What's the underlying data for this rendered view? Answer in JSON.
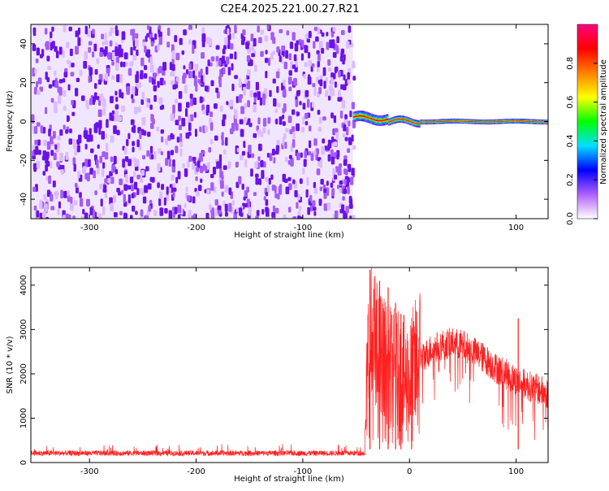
{
  "title": "C2E4.2025.221.00.27.R21",
  "chart_data": [
    {
      "type": "heatmap",
      "xlabel": "Height of straight line (km)",
      "ylabel": "Frequency (Hz)",
      "xlim": [
        -355,
        130
      ],
      "ylim": [
        -50,
        50
      ],
      "xticks": [
        -300,
        -200,
        -100,
        0,
        100
      ],
      "yticks": [
        -40,
        -20,
        0,
        20,
        40
      ],
      "noise_region_x": [
        -355,
        -53
      ],
      "signal_center_hz": 0,
      "signal_spread_hz": 4,
      "colorbar": {
        "label": "Normalized spectral amplitude",
        "range": [
          0,
          1
        ],
        "ticks": [
          0.0,
          0.2,
          0.4,
          0.6,
          0.8
        ],
        "colors": [
          "#ffffff",
          "#b060ff",
          "#0000ff",
          "#00e0ff",
          "#00ff00",
          "#ffff00",
          "#ff8000",
          "#ff0000",
          "#ff0080"
        ]
      }
    },
    {
      "type": "line",
      "xlabel": "Height of straight line (km)",
      "ylabel": "SNR (10 * v/v)",
      "xlim": [
        -355,
        130
      ],
      "ylim": [
        0,
        4400
      ],
      "xticks": [
        -300,
        -200,
        -100,
        0,
        100
      ],
      "yticks": [
        0,
        1000,
        2000,
        3000,
        4000
      ],
      "color": "#ff2020",
      "profile": {
        "x": [
          -355,
          -42,
          -40,
          -38,
          -30,
          -20,
          -10,
          0,
          10,
          20,
          30,
          40,
          50,
          60,
          70,
          80,
          90,
          100,
          110,
          120,
          130
        ],
        "y": [
          200,
          200,
          1600,
          2700,
          2300,
          2000,
          1900,
          1800,
          2300,
          2550,
          2650,
          2700,
          2650,
          2500,
          2350,
          2150,
          2000,
          1850,
          1750,
          1650,
          1550
        ]
      },
      "spikes": [
        {
          "x": -37,
          "y": 4350
        },
        {
          "x": -28,
          "y": 4100
        },
        {
          "x": -20,
          "y": 3950
        },
        {
          "x": -13,
          "y": 3600
        },
        {
          "x": -8,
          "y": 3350
        },
        {
          "x": 2,
          "y": 3000
        },
        {
          "x": 102,
          "y": 3250
        }
      ]
    }
  ]
}
